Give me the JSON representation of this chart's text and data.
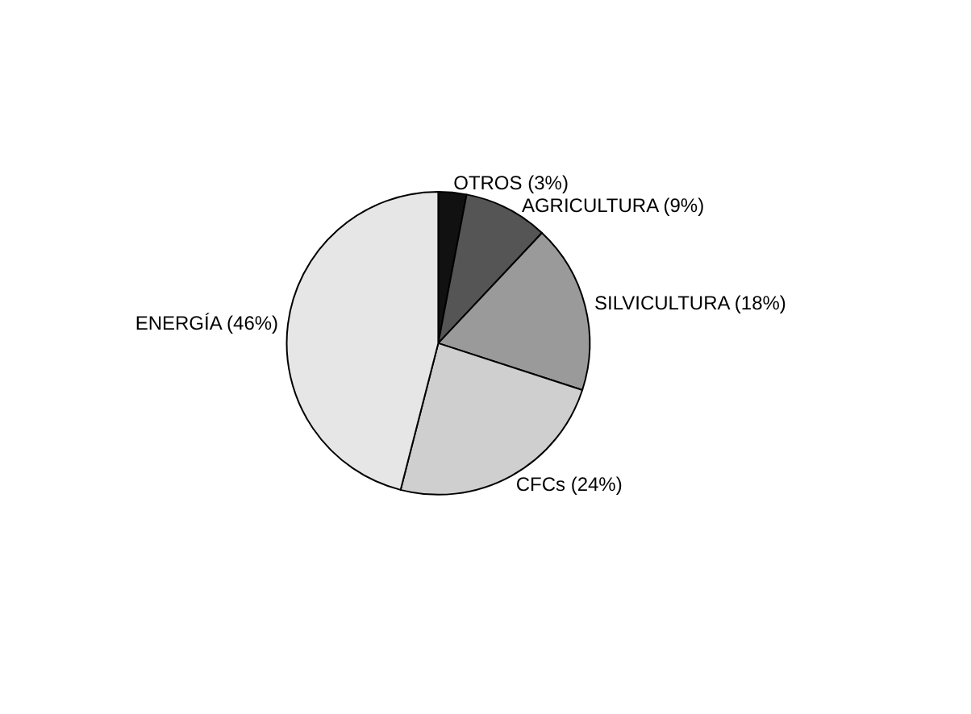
{
  "chart_data": {
    "type": "pie",
    "categories": [
      "OTROS (3%)",
      "AGRICULTURA (9%)",
      "SILVICULTURA (18%)",
      "CFCs (24%)",
      "ENERGÍA (46%)"
    ],
    "values": [
      3,
      9,
      18,
      24,
      46
    ],
    "colors": [
      "#111111",
      "#555555",
      "#9a9a9a",
      "#cfcfcf",
      "#e6e6e6"
    ]
  }
}
